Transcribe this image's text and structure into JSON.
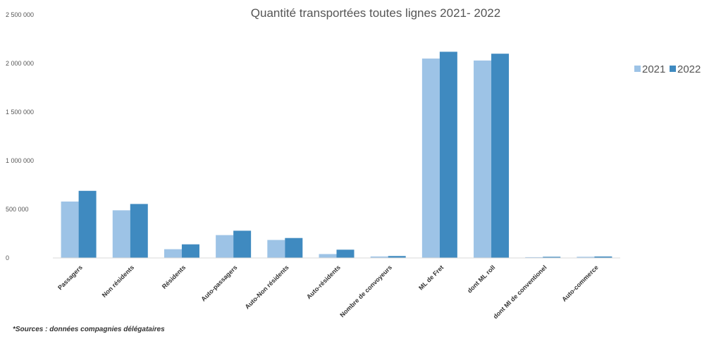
{
  "chart_data": {
    "type": "bar",
    "title": "Quantité transportées toutes lignes 2021- 2022",
    "categories": [
      "Passagers",
      "Non résidents",
      "Résidents",
      "Auto-passagers",
      "Auto-Non résidents",
      "Auto-résidents",
      "Nombre de convoyeurs",
      "ML de Fret",
      "dont ML roll",
      "dont Ml de conventionel",
      "Auto-commerce"
    ],
    "series": [
      {
        "name": "2021",
        "color": "#9dc3e6",
        "values": [
          580000,
          490000,
          90000,
          235000,
          185000,
          40000,
          15000,
          2050000,
          2030000,
          8000,
          12000
        ]
      },
      {
        "name": "2022",
        "color": "#3f8ac0",
        "values": [
          690000,
          555000,
          140000,
          280000,
          205000,
          85000,
          20000,
          2120000,
          2100000,
          12000,
          15000
        ]
      }
    ],
    "ylim": [
      0,
      2500000
    ],
    "yticks": [
      0,
      500000,
      1000000,
      1500000,
      2000000,
      2500000
    ],
    "ytick_labels": [
      "0",
      "500 000",
      "1 000 000",
      "1 500 000",
      "2 000 000",
      "2 500 000"
    ],
    "xlabel": "",
    "ylabel": "",
    "grid": false,
    "legend_position": "top-right"
  },
  "source_note": "*Sources : données compagnies délégataires"
}
